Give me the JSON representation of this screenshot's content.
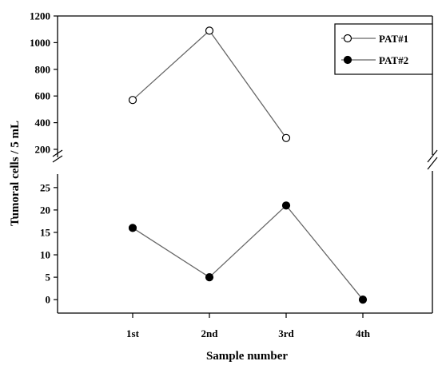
{
  "chart_data": {
    "type": "line",
    "xlabel": "Sample number",
    "ylabel": "Tumoral cells / 5 mL",
    "categories": [
      "1st",
      "2nd",
      "3rd",
      "4th"
    ],
    "broken_y_axis": true,
    "y_upper_ticks": [
      200,
      400,
      600,
      800,
      1000,
      1200
    ],
    "y_lower_ticks": [
      0,
      5,
      10,
      15,
      20,
      25
    ],
    "y_upper_range": [
      140,
      1200
    ],
    "y_lower_range": [
      -3,
      28
    ],
    "legend_position": "top-right",
    "grid": false,
    "series": [
      {
        "name": "PAT#1",
        "marker": "open-circle",
        "color": "#000000",
        "panel": "upper",
        "values": [
          570,
          1090,
          285,
          null
        ]
      },
      {
        "name": "PAT#2",
        "marker": "filled-circle",
        "color": "#000000",
        "panel": "lower",
        "values": [
          16,
          5,
          21,
          0
        ]
      }
    ]
  }
}
